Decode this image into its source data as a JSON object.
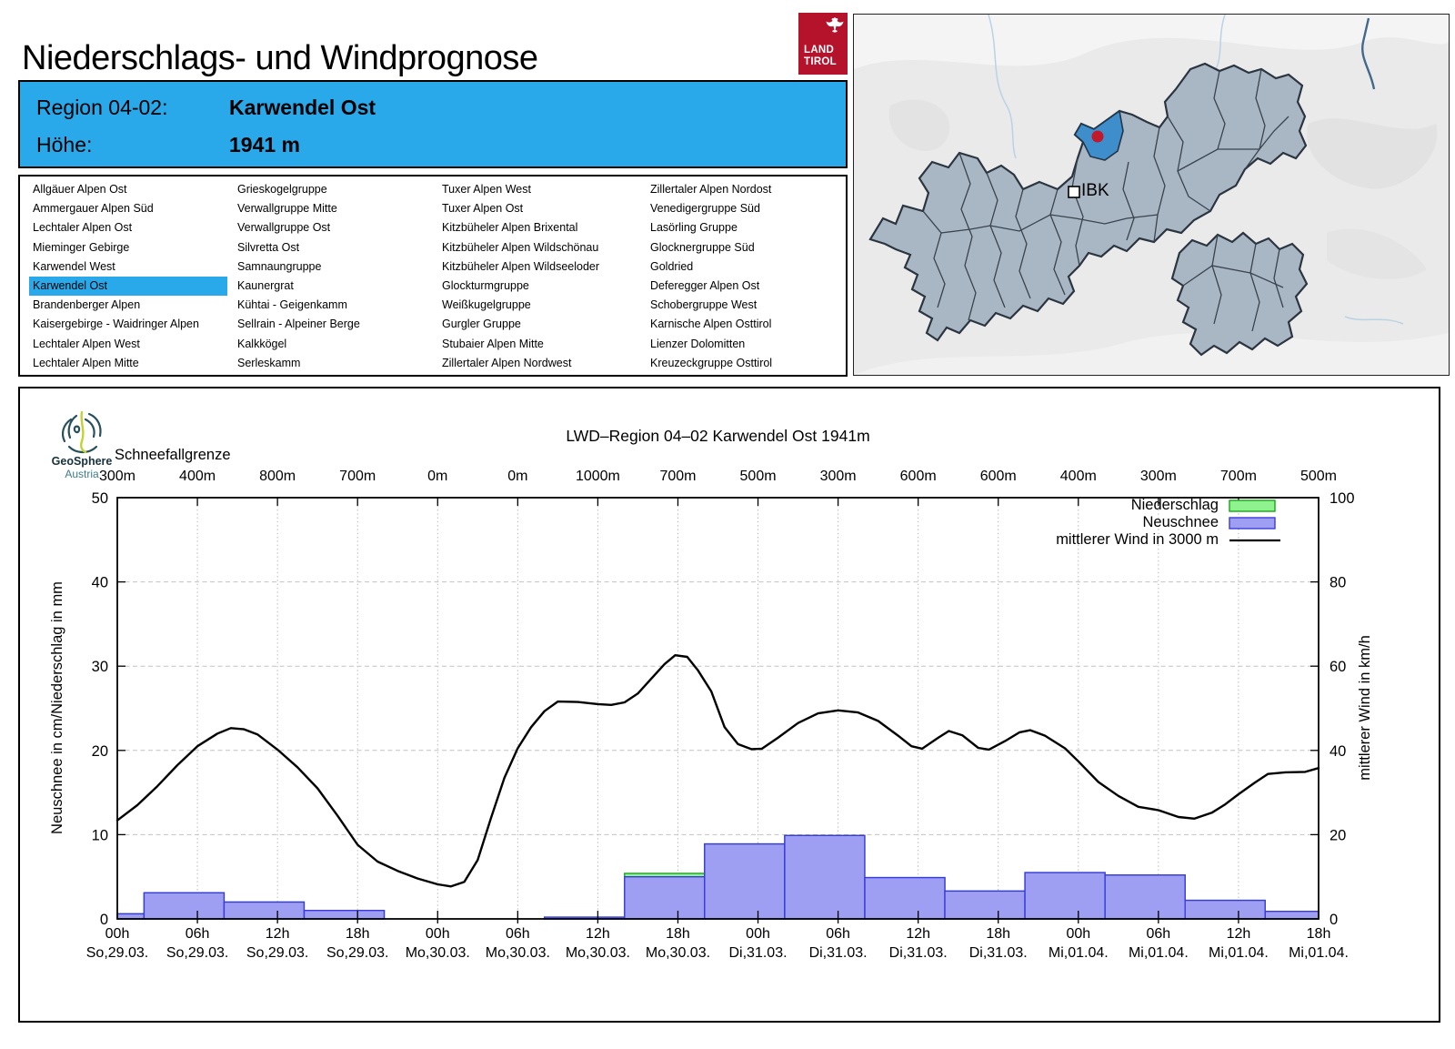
{
  "header": {
    "title": "Niederschlags- und Windprognose",
    "logo": {
      "line1": "LAND",
      "line2": "TIROL"
    }
  },
  "region_info": {
    "region_label": "Region 04-02:",
    "region_name": "Karwendel Ost",
    "altitude_label": "Höhe:",
    "altitude_value": "1941 m"
  },
  "region_list": {
    "selected": "Karwendel Ost",
    "columns": [
      [
        "Allgäuer Alpen Ost",
        "Ammergauer Alpen Süd",
        "Lechtaler Alpen Ost",
        "Mieminger Gebirge",
        "Karwendel West",
        "Karwendel Ost",
        "Brandenberger Alpen",
        "Kaisergebirge - Waidringer Alpen",
        "Lechtaler Alpen West",
        "Lechtaler Alpen Mitte"
      ],
      [
        "Grieskogelgruppe",
        "Verwallgruppe Mitte",
        "Verwallgruppe Ost",
        "Silvretta Ost",
        "Samnaungruppe",
        "Kaunergrat",
        "Kühtai - Geigenkamm",
        "Sellrain - Alpeiner Berge",
        "Kalkkögel",
        "Serleskamm"
      ],
      [
        "Tuxer Alpen West",
        "Tuxer Alpen Ost",
        "Kitzbüheler Alpen Brixental",
        "Kitzbüheler Alpen Wildschönau",
        "Kitzbüheler Alpen Wildseeloder",
        "Glockturmgruppe",
        "Weißkugelgruppe",
        "Gurgler Gruppe",
        "Stubaier Alpen Mitte",
        "Zillertaler Alpen Nordwest"
      ],
      [
        "Zillertaler Alpen Nordost",
        "Venedigergruppe Süd",
        "Lasörling Gruppe",
        "Glocknergruppe Süd",
        "Goldried",
        "Deferegger Alpen Ost",
        "Schobergruppe West",
        "Karnische Alpen Osttirol",
        "Lienzer Dolomitten",
        "Kreuzeckgruppe Osttirol"
      ]
    ]
  },
  "map": {
    "ibk_label": "IBK"
  },
  "geosphere": {
    "line1": "GeoSphere",
    "line2": "Austria"
  },
  "colors": {
    "accent_blue": "#29a9e9",
    "map_region_fill": "#a9b7c4",
    "map_selected_fill": "#3e8ecb",
    "map_marker_red": "#c2182b",
    "landtirol_red": "#b5122b",
    "neuschnee_fill": "#9e9ef2",
    "neuschnee_border": "#3b3bdd",
    "niederschlag_fill": "#8ff28f",
    "niederschlag_border": "#14a814",
    "wind_line": "#000000"
  },
  "chart_data": {
    "type": "bar+line",
    "title": "LWD–Region 04–02 Karwendel Ost 1941m",
    "snowline_label": "Schneefallgrenze",
    "snowline_values": [
      "300m",
      "400m",
      "800m",
      "700m",
      "0m",
      "0m",
      "1000m",
      "700m",
      "500m",
      "300m",
      "600m",
      "600m",
      "400m",
      "300m",
      "700m",
      "500m"
    ],
    "x_tick_labels": [
      {
        "time": "00h",
        "date": "So,29.03."
      },
      {
        "time": "06h",
        "date": "So,29.03."
      },
      {
        "time": "12h",
        "date": "So,29.03."
      },
      {
        "time": "18h",
        "date": "So,29.03."
      },
      {
        "time": "00h",
        "date": "Mo,30.03."
      },
      {
        "time": "06h",
        "date": "Mo,30.03."
      },
      {
        "time": "12h",
        "date": "Mo,30.03."
      },
      {
        "time": "18h",
        "date": "Mo,30.03."
      },
      {
        "time": "00h",
        "date": "Di,31.03."
      },
      {
        "time": "06h",
        "date": "Di,31.03."
      },
      {
        "time": "12h",
        "date": "Di,31.03."
      },
      {
        "time": "18h",
        "date": "Di,31.03."
      },
      {
        "time": "00h",
        "date": "Mi,01.04."
      },
      {
        "time": "06h",
        "date": "Mi,01.04."
      },
      {
        "time": "12h",
        "date": "Mi,01.04."
      },
      {
        "time": "18h",
        "date": "Mi,01.04."
      }
    ],
    "ylabel_left": "Neuschnee in cm/Niederschlag in mm",
    "ylabel_right": "mittlerer Wind in km/h",
    "ylim_left": [
      0,
      50
    ],
    "ylim_right": [
      0,
      100
    ],
    "yticks_left": [
      0,
      10,
      20,
      30,
      40,
      50
    ],
    "yticks_right": [
      0,
      20,
      40,
      60,
      80,
      100
    ],
    "grid": true,
    "legend_position": "top-right",
    "legend": [
      {
        "label": "Niederschlag",
        "type": "box",
        "fill": "#8ff28f",
        "border": "#14a814"
      },
      {
        "label": "Neuschnee",
        "type": "box",
        "fill": "#9e9ef2",
        "border": "#3b3bdd"
      },
      {
        "label": "mittlerer Wind in 3000 m",
        "type": "line",
        "color": "#000000"
      }
    ],
    "neuschnee_cm": [
      0.6,
      3.1,
      2.0,
      1.0,
      0,
      0,
      0.2,
      5.0,
      8.9,
      9.9,
      4.9,
      3.3,
      5.5,
      5.2,
      2.2,
      0.9
    ],
    "niederschlag_mm": [
      0.6,
      3.1,
      2.0,
      1.0,
      0,
      0,
      0.2,
      5.4,
      8.9,
      9.9,
      4.9,
      3.3,
      5.5,
      5.2,
      2.2,
      0.9
    ],
    "wind_points": [
      [
        0,
        23.4
      ],
      [
        1.5,
        27
      ],
      [
        3,
        31.5
      ],
      [
        4.5,
        36.5
      ],
      [
        6,
        41
      ],
      [
        7.5,
        44
      ],
      [
        8.5,
        45.3
      ],
      [
        9.5,
        45
      ],
      [
        10.5,
        43.8
      ],
      [
        12,
        40.2
      ],
      [
        13.5,
        36
      ],
      [
        15,
        31
      ],
      [
        16.5,
        24.5
      ],
      [
        18,
        17.6
      ],
      [
        19.5,
        13.6
      ],
      [
        21,
        11.4
      ],
      [
        22.5,
        9.6
      ],
      [
        24,
        8.2
      ],
      [
        25,
        7.7
      ],
      [
        26,
        8.8
      ],
      [
        27,
        14
      ],
      [
        28,
        24
      ],
      [
        29,
        33.5
      ],
      [
        30,
        40.5
      ],
      [
        31,
        45.5
      ],
      [
        32,
        49.3
      ],
      [
        33,
        51.6
      ],
      [
        34.5,
        51.5
      ],
      [
        36,
        51
      ],
      [
        37,
        50.8
      ],
      [
        38,
        51.4
      ],
      [
        39,
        53.5
      ],
      [
        40,
        57
      ],
      [
        41,
        60.5
      ],
      [
        41.8,
        62.6
      ],
      [
        42.7,
        62.2
      ],
      [
        43.5,
        59
      ],
      [
        44.5,
        54
      ],
      [
        45.5,
        45.5
      ],
      [
        46.5,
        41.5
      ],
      [
        47.5,
        40.3
      ],
      [
        48.3,
        40.4
      ],
      [
        49.5,
        43
      ],
      [
        51,
        46.5
      ],
      [
        52.5,
        48.8
      ],
      [
        54,
        49.5
      ],
      [
        55.5,
        49
      ],
      [
        57,
        47
      ],
      [
        58.5,
        43.5
      ],
      [
        59.5,
        41
      ],
      [
        60.3,
        40.4
      ],
      [
        61.5,
        43
      ],
      [
        62.3,
        44.6
      ],
      [
        63.3,
        43.6
      ],
      [
        64.5,
        40.6
      ],
      [
        65.3,
        40.2
      ],
      [
        66.5,
        42.2
      ],
      [
        67.6,
        44.3
      ],
      [
        68.4,
        44.8
      ],
      [
        69.5,
        43.5
      ],
      [
        71,
        40.5
      ],
      [
        72,
        37.4
      ],
      [
        73.5,
        32.5
      ],
      [
        75,
        29.2
      ],
      [
        76.5,
        26.6
      ],
      [
        78,
        25.8
      ],
      [
        79.5,
        24.2
      ],
      [
        80.7,
        23.8
      ],
      [
        82,
        25.2
      ],
      [
        83,
        27.2
      ],
      [
        84,
        29.6
      ],
      [
        85.2,
        32.3
      ],
      [
        86.2,
        34.4
      ],
      [
        87.5,
        34.8
      ],
      [
        89,
        34.9
      ],
      [
        90,
        35.8
      ]
    ]
  }
}
